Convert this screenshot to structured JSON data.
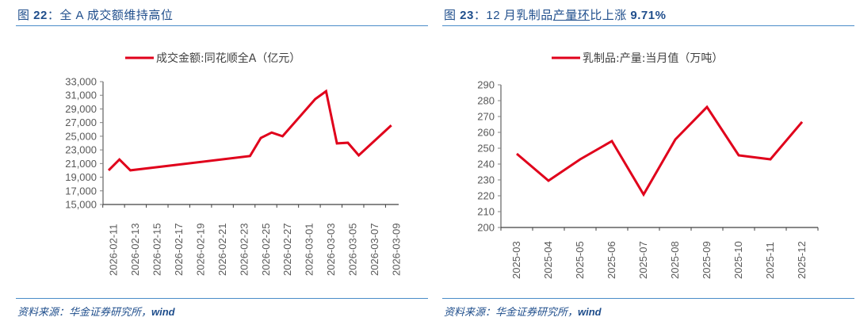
{
  "figures": [
    {
      "title_prefix": "图 ",
      "title_num": "22",
      "title_sep": "：",
      "title_text": "全 A 成交额维持高位",
      "source_prefix": "资料来源：华金证券研究所，",
      "source_suffix": "wind"
    },
    {
      "title_prefix": "图 ",
      "title_num": "23",
      "title_sep": "：",
      "title_text_a": "12 月乳制品",
      "title_text_ul": "产量环",
      "title_text_b": "比上涨 ",
      "title_text_pct": "9.71%",
      "source_prefix": "资料来源：华金证券研究所，",
      "source_suffix": "wind"
    }
  ],
  "colors": {
    "title": "#1f4e8c",
    "rule": "#4a8cc8",
    "series": "#e0001b",
    "axis": "#808080"
  },
  "chart_data": [
    {
      "type": "line",
      "title": "图 22：全 A 成交额维持高位",
      "legend": [
        "成交金额:同花顺全A（亿元）"
      ],
      "legend_position": "top",
      "xlabel": "",
      "ylabel": "",
      "ylim": [
        15000,
        33000
      ],
      "yticks": [
        15000,
        17000,
        19000,
        21000,
        23000,
        25000,
        27000,
        29000,
        31000,
        33000
      ],
      "ytick_labels": [
        "15,000",
        "17,000",
        "19,000",
        "21,000",
        "23,000",
        "25,000",
        "27,000",
        "29,000",
        "31,000",
        "33,000"
      ],
      "xtick_labels": [
        "2026-02-11",
        "2026-02-13",
        "2026-02-15",
        "2026-02-17",
        "2026-02-19",
        "2026-02-21",
        "2026-02-23",
        "2026-02-25",
        "2026-02-27",
        "2026-03-01",
        "2026-03-03",
        "2026-03-05",
        "2026-03-07",
        "2026-03-09"
      ],
      "grid": false,
      "series": [
        {
          "name": "成交金额:同花顺全A（亿元）",
          "x": [
            "2026-02-11",
            "2026-02-12",
            "2026-02-13",
            "2026-02-24",
            "2026-02-25",
            "2026-02-26",
            "2026-02-27",
            "2026-03-02",
            "2026-03-03",
            "2026-03-04",
            "2026-03-05",
            "2026-03-06",
            "2026-03-09"
          ],
          "values": [
            20000,
            21600,
            20000,
            22100,
            24750,
            25550,
            25000,
            30450,
            31600,
            23950,
            24050,
            22200,
            26600
          ]
        }
      ]
    },
    {
      "type": "line",
      "title": "图 23：12 月乳制品产量环比上涨 9.71%",
      "legend": [
        "乳制品:产量:当月值（万吨）"
      ],
      "legend_position": "top",
      "xlabel": "",
      "ylabel": "",
      "ylim": [
        200,
        290
      ],
      "yticks": [
        200,
        210,
        220,
        230,
        240,
        250,
        260,
        270,
        280,
        290
      ],
      "categories": [
        "2025-03",
        "2025-04",
        "2025-05",
        "2025-06",
        "2025-07",
        "2025-08",
        "2025-09",
        "2025-10",
        "2025-11",
        "2025-12"
      ],
      "grid": false,
      "series": [
        {
          "name": "乳制品:产量:当月值（万吨）",
          "values": [
            246.5,
            229.5,
            243.0,
            254.5,
            220.8,
            255.5,
            276.0,
            245.5,
            243.0,
            266.6
          ]
        }
      ]
    }
  ]
}
